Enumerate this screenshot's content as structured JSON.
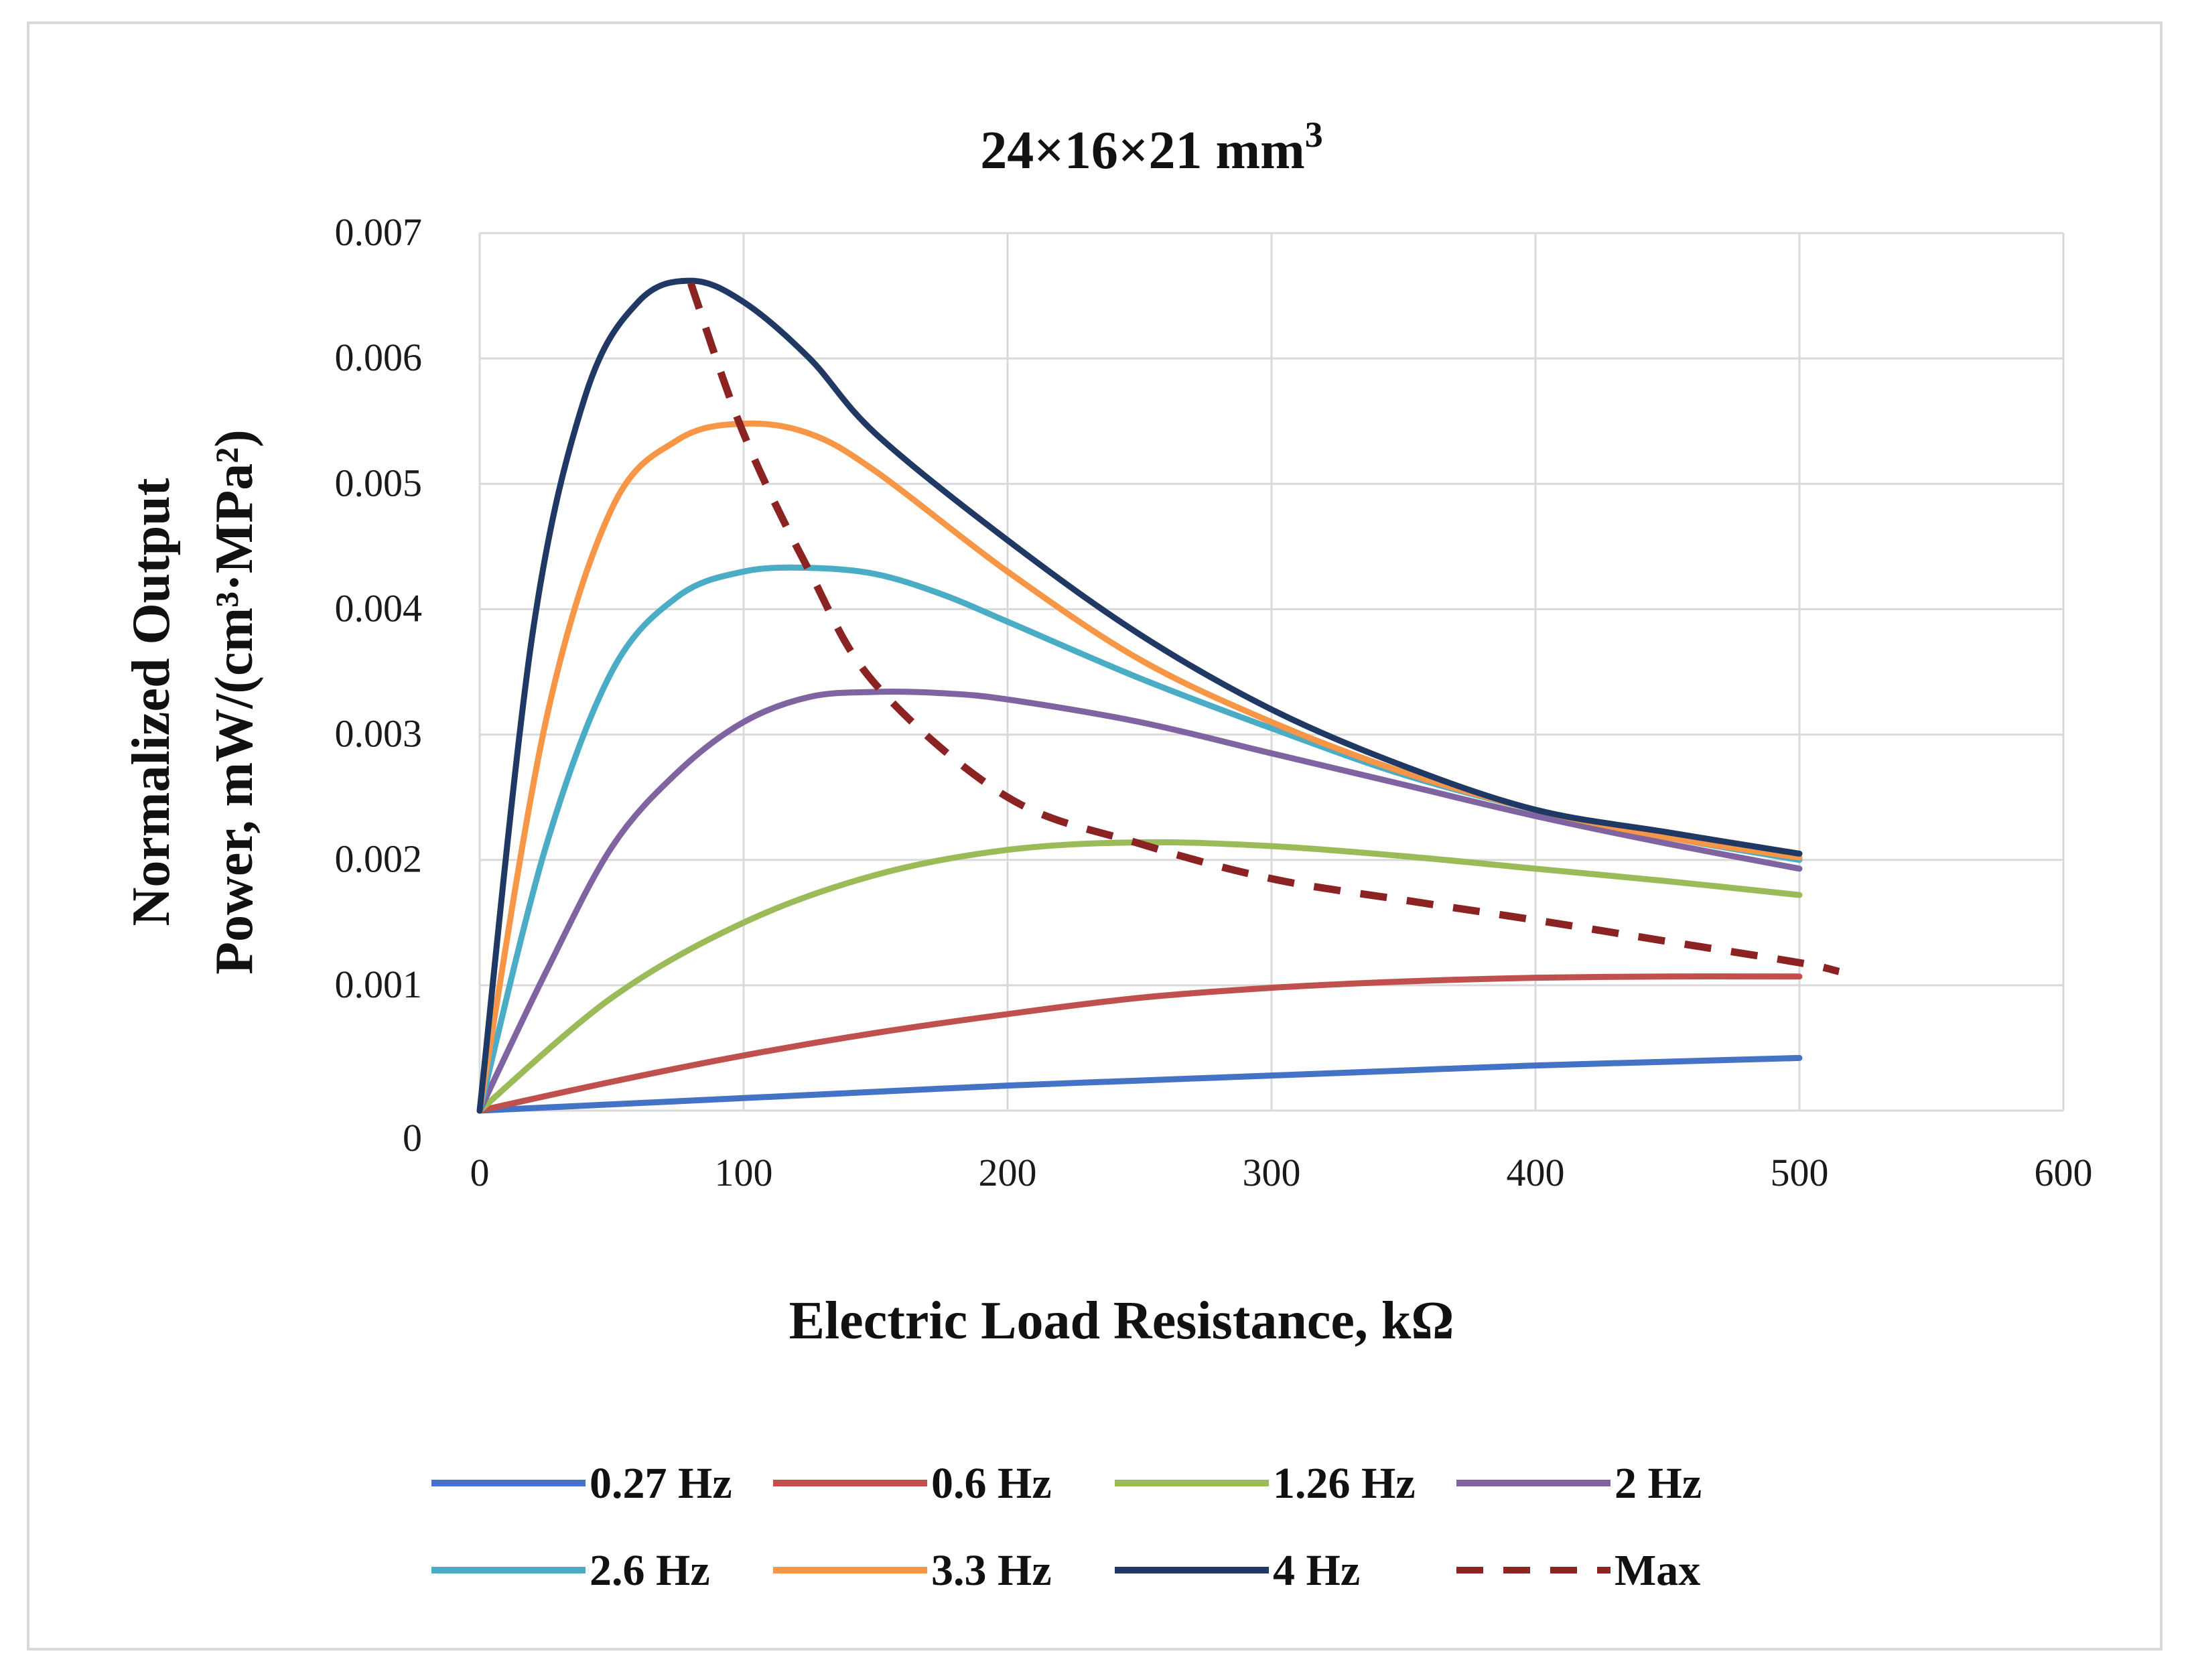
{
  "chart_data": {
    "type": "line",
    "title": "24×16×21 mm",
    "title_superscript": "3",
    "xlabel": "Electric Load Resistance, kΩ",
    "ylabel_line1": "Normalized Output",
    "ylabel_line2": "Power, mW/(cm³·MPa²)",
    "xlim": [
      0,
      600
    ],
    "ylim": [
      0,
      0.007
    ],
    "xticks": [
      0,
      100,
      200,
      300,
      400,
      500,
      600
    ],
    "yticks": [
      0,
      0.001,
      0.002,
      0.003,
      0.004,
      0.005,
      0.006,
      0.007
    ],
    "xtick_labels": [
      "0",
      "100",
      "200",
      "300",
      "400",
      "500",
      "600"
    ],
    "ytick_labels": [
      "0",
      "0.001",
      "0.002",
      "0.003",
      "0.004",
      "0.005",
      "0.006",
      "0.007"
    ],
    "grid": true,
    "legend_position": "bottom",
    "series": [
      {
        "name": "0.27 Hz",
        "color": "#4472C4",
        "dashed": false,
        "x": [
          0,
          50,
          100,
          150,
          200,
          250,
          300,
          350,
          400,
          450,
          500
        ],
        "y": [
          0.0,
          5e-05,
          0.0001,
          0.00015,
          0.0002,
          0.00024,
          0.00028,
          0.00032,
          0.00036,
          0.00039,
          0.00042
        ]
      },
      {
        "name": "0.6 Hz",
        "color": "#C0504D",
        "dashed": false,
        "x": [
          0,
          50,
          100,
          150,
          200,
          250,
          300,
          350,
          400,
          450,
          500
        ],
        "y": [
          0.0,
          0.00023,
          0.00044,
          0.00062,
          0.00077,
          0.0009,
          0.00098,
          0.00103,
          0.00106,
          0.00107,
          0.00107
        ]
      },
      {
        "name": "1.26 Hz",
        "color": "#9BBB59",
        "dashed": false,
        "x": [
          0,
          50,
          100,
          150,
          200,
          250,
          300,
          350,
          400,
          450,
          500
        ],
        "y": [
          0.0,
          0.0009,
          0.0015,
          0.00188,
          0.00208,
          0.00214,
          0.00211,
          0.00203,
          0.00193,
          0.00183,
          0.00172
        ]
      },
      {
        "name": "2 Hz",
        "color": "#8064A2",
        "dashed": false,
        "x": [
          0,
          25,
          50,
          75,
          100,
          125,
          150,
          175,
          200,
          250,
          300,
          350,
          400,
          450,
          500
        ],
        "y": [
          0.0,
          0.0011,
          0.0021,
          0.0027,
          0.0031,
          0.0033,
          0.00334,
          0.00333,
          0.00328,
          0.0031,
          0.00285,
          0.0026,
          0.00235,
          0.00213,
          0.00193
        ]
      },
      {
        "name": "2.6 Hz",
        "color": "#4BACC6",
        "dashed": false,
        "x": [
          0,
          25,
          50,
          75,
          100,
          125,
          150,
          175,
          200,
          250,
          300,
          350,
          400,
          450,
          500
        ],
        "y": [
          0.0,
          0.0021,
          0.0035,
          0.0041,
          0.0043,
          0.00433,
          0.00428,
          0.00412,
          0.0039,
          0.00345,
          0.00305,
          0.00268,
          0.0024,
          0.00218,
          0.002
        ]
      },
      {
        "name": "3.3 Hz",
        "color": "#F79646",
        "dashed": false,
        "x": [
          0,
          25,
          50,
          75,
          100,
          125,
          150,
          200,
          250,
          300,
          350,
          400,
          450,
          500
        ],
        "y": [
          0.0,
          0.0031,
          0.0048,
          0.00535,
          0.00548,
          0.0054,
          0.0051,
          0.0043,
          0.0036,
          0.0031,
          0.0027,
          0.0024,
          0.00218,
          0.00202
        ]
      },
      {
        "name": "4 Hz",
        "color": "#1F3864",
        "dashed": false,
        "x": [
          0,
          20,
          40,
          60,
          80,
          100,
          125,
          150,
          200,
          250,
          300,
          350,
          400,
          450,
          500
        ],
        "y": [
          0.0,
          0.0038,
          0.0057,
          0.00645,
          0.00662,
          0.00645,
          0.006,
          0.0054,
          0.00455,
          0.0038,
          0.0032,
          0.00275,
          0.0024,
          0.00222,
          0.00205
        ]
      },
      {
        "name": "Max",
        "color": "#8B2323",
        "dashed": true,
        "x": [
          80,
          100,
          125,
          150,
          200,
          250,
          300,
          350,
          400,
          450,
          500,
          515
        ],
        "y": [
          0.0066,
          0.0054,
          0.0043,
          0.0034,
          0.0025,
          0.00213,
          0.00185,
          0.00168,
          0.00152,
          0.00135,
          0.00118,
          0.00111
        ]
      }
    ]
  }
}
